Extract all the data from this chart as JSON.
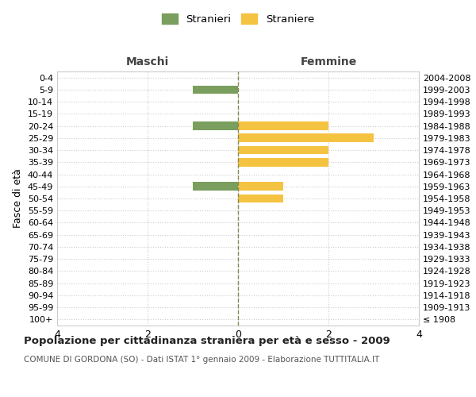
{
  "age_groups": [
    "100+",
    "95-99",
    "90-94",
    "85-89",
    "80-84",
    "75-79",
    "70-74",
    "65-69",
    "60-64",
    "55-59",
    "50-54",
    "45-49",
    "40-44",
    "35-39",
    "30-34",
    "25-29",
    "20-24",
    "15-19",
    "10-14",
    "5-9",
    "0-4"
  ],
  "birth_years": [
    "≤ 1908",
    "1909-1913",
    "1914-1918",
    "1919-1923",
    "1924-1928",
    "1929-1933",
    "1934-1938",
    "1939-1943",
    "1944-1948",
    "1949-1953",
    "1954-1958",
    "1959-1963",
    "1964-1968",
    "1969-1973",
    "1974-1978",
    "1979-1983",
    "1984-1988",
    "1989-1993",
    "1994-1998",
    "1999-2003",
    "2004-2008"
  ],
  "maschi": [
    0,
    0,
    0,
    0,
    0,
    0,
    0,
    0,
    0,
    0,
    0,
    -1,
    0,
    0,
    0,
    0,
    -1,
    0,
    0,
    -1,
    0
  ],
  "femmine": [
    0,
    0,
    0,
    0,
    0,
    0,
    0,
    0,
    0,
    0,
    1,
    1,
    0,
    2,
    2,
    3,
    2,
    0,
    0,
    0,
    0
  ],
  "color_maschi": "#7a9e5e",
  "color_femmine": "#f5c342",
  "title": "Popolazione per cittadinanza straniera per età e sesso - 2009",
  "subtitle": "COMUNE DI GORDONA (SO) - Dati ISTAT 1° gennaio 2009 - Elaborazione TUTTITALIA.IT",
  "xlabel_left": "Maschi",
  "xlabel_right": "Femmine",
  "ylabel_left": "Fasce di età",
  "legend_maschi": "Stranieri",
  "legend_femmine": "Straniere",
  "xlim": [
    -4,
    4
  ],
  "xticks": [
    -4,
    -2,
    0,
    2,
    4
  ],
  "xticklabels": [
    "4",
    "2",
    "0",
    "2",
    "4"
  ],
  "background_color": "#ffffff",
  "grid_color": "#cccccc"
}
